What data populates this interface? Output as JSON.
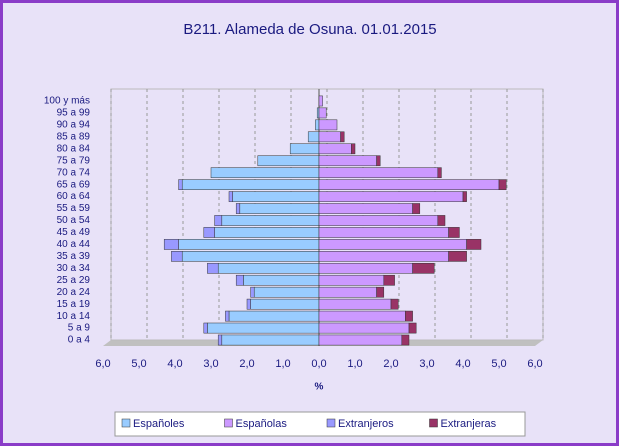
{
  "chart_data": {
    "type": "pyramid",
    "title": "B211. Alameda de Osuna. 01.01.2015",
    "x_label": "%",
    "categories": [
      "0 a 4",
      "5 a 9",
      "10 a 14",
      "15 a 19",
      "20 a 24",
      "25 a 29",
      "30 a 34",
      "35 a 39",
      "40 a 44",
      "45 a 49",
      "50 a 54",
      "55 a 59",
      "60 a 64",
      "65 a 69",
      "70 a 74",
      "75 a 79",
      "80 a 84",
      "85 a 89",
      "90 a 94",
      "95 a 99",
      "100 y más"
    ],
    "series": [
      {
        "name": "Españoles",
        "color": "#99ccff",
        "values": [
          -2.7,
          -3.1,
          -2.5,
          -1.9,
          -1.8,
          -2.1,
          -2.8,
          -3.8,
          -3.9,
          -2.9,
          -2.7,
          -2.2,
          -2.4,
          -3.8,
          -3.0,
          -1.7,
          -0.8,
          -0.3,
          -0.1,
          -0.05,
          0
        ]
      },
      {
        "name": "Españolas",
        "color": "#cc99ff",
        "values": [
          2.3,
          2.5,
          2.4,
          2.0,
          1.6,
          1.8,
          2.6,
          3.6,
          4.1,
          3.6,
          3.3,
          2.6,
          4.0,
          5.0,
          3.3,
          1.6,
          0.9,
          0.6,
          0.5,
          0.2,
          0.1
        ]
      },
      {
        "name": "Extranjeros",
        "color": "#9999ff",
        "values": [
          -0.1,
          -0.1,
          -0.1,
          -0.1,
          -0.1,
          -0.2,
          -0.3,
          -0.3,
          -0.4,
          -0.3,
          -0.2,
          -0.1,
          -0.1,
          -0.1,
          0,
          0,
          0,
          0,
          0,
          0,
          0
        ]
      },
      {
        "name": "Extranjeras",
        "color": "#993366",
        "values": [
          0.2,
          0.2,
          0.2,
          0.2,
          0.2,
          0.3,
          0.6,
          0.5,
          0.4,
          0.3,
          0.2,
          0.2,
          0.1,
          0.2,
          0.1,
          0.1,
          0.1,
          0.1,
          0,
          0,
          0
        ]
      }
    ],
    "stack_on": [
      null,
      null,
      0,
      1
    ],
    "xlim": [
      -6,
      6
    ],
    "xticks": [
      {
        "value": -6,
        "label": "6,0"
      },
      {
        "value": -5,
        "label": "5,0"
      },
      {
        "value": -4,
        "label": "4,0"
      },
      {
        "value": -3,
        "label": "3,0"
      },
      {
        "value": -2,
        "label": "2,0"
      },
      {
        "value": -1,
        "label": "1,0"
      },
      {
        "value": 0,
        "label": "0,0"
      },
      {
        "value": 1,
        "label": "1,0"
      },
      {
        "value": 2,
        "label": "2,0"
      },
      {
        "value": 3,
        "label": "3,0"
      },
      {
        "value": 4,
        "label": "4,0"
      },
      {
        "value": 5,
        "label": "5,0"
      },
      {
        "value": 6,
        "label": "6,0"
      }
    ],
    "grid": true
  }
}
